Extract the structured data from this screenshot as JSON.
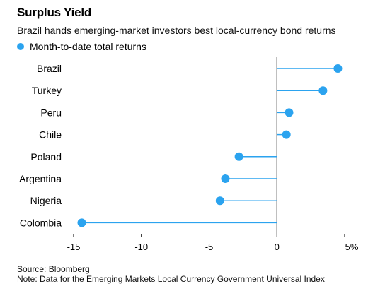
{
  "chart_data": {
    "type": "lollipop",
    "title": "Surplus Yield",
    "subtitle": "Brazil hands emerging-market investors best local-currency bond returns",
    "legend": [
      "Month-to-date total returns"
    ],
    "series_color": "#2ba3ef",
    "categories": [
      "Brazil",
      "Turkey",
      "Peru",
      "Chile",
      "Poland",
      "Argentina",
      "Nigeria",
      "Colombia"
    ],
    "series": [
      {
        "name": "Month-to-date total returns",
        "values": [
          4.5,
          3.4,
          0.9,
          0.7,
          -2.8,
          -3.8,
          -4.2,
          -14.4
        ]
      }
    ],
    "xlim": [
      -15,
      5
    ],
    "xticks": [
      -15,
      -10,
      -5,
      0,
      5
    ],
    "xtick_labels": [
      "-15",
      "-10",
      "-5",
      "0",
      "5%"
    ],
    "grid": false
  },
  "footer": {
    "source": "Source: Bloomberg",
    "note": "Note: Data for the Emerging Markets Local Currency Government Universal Index"
  }
}
